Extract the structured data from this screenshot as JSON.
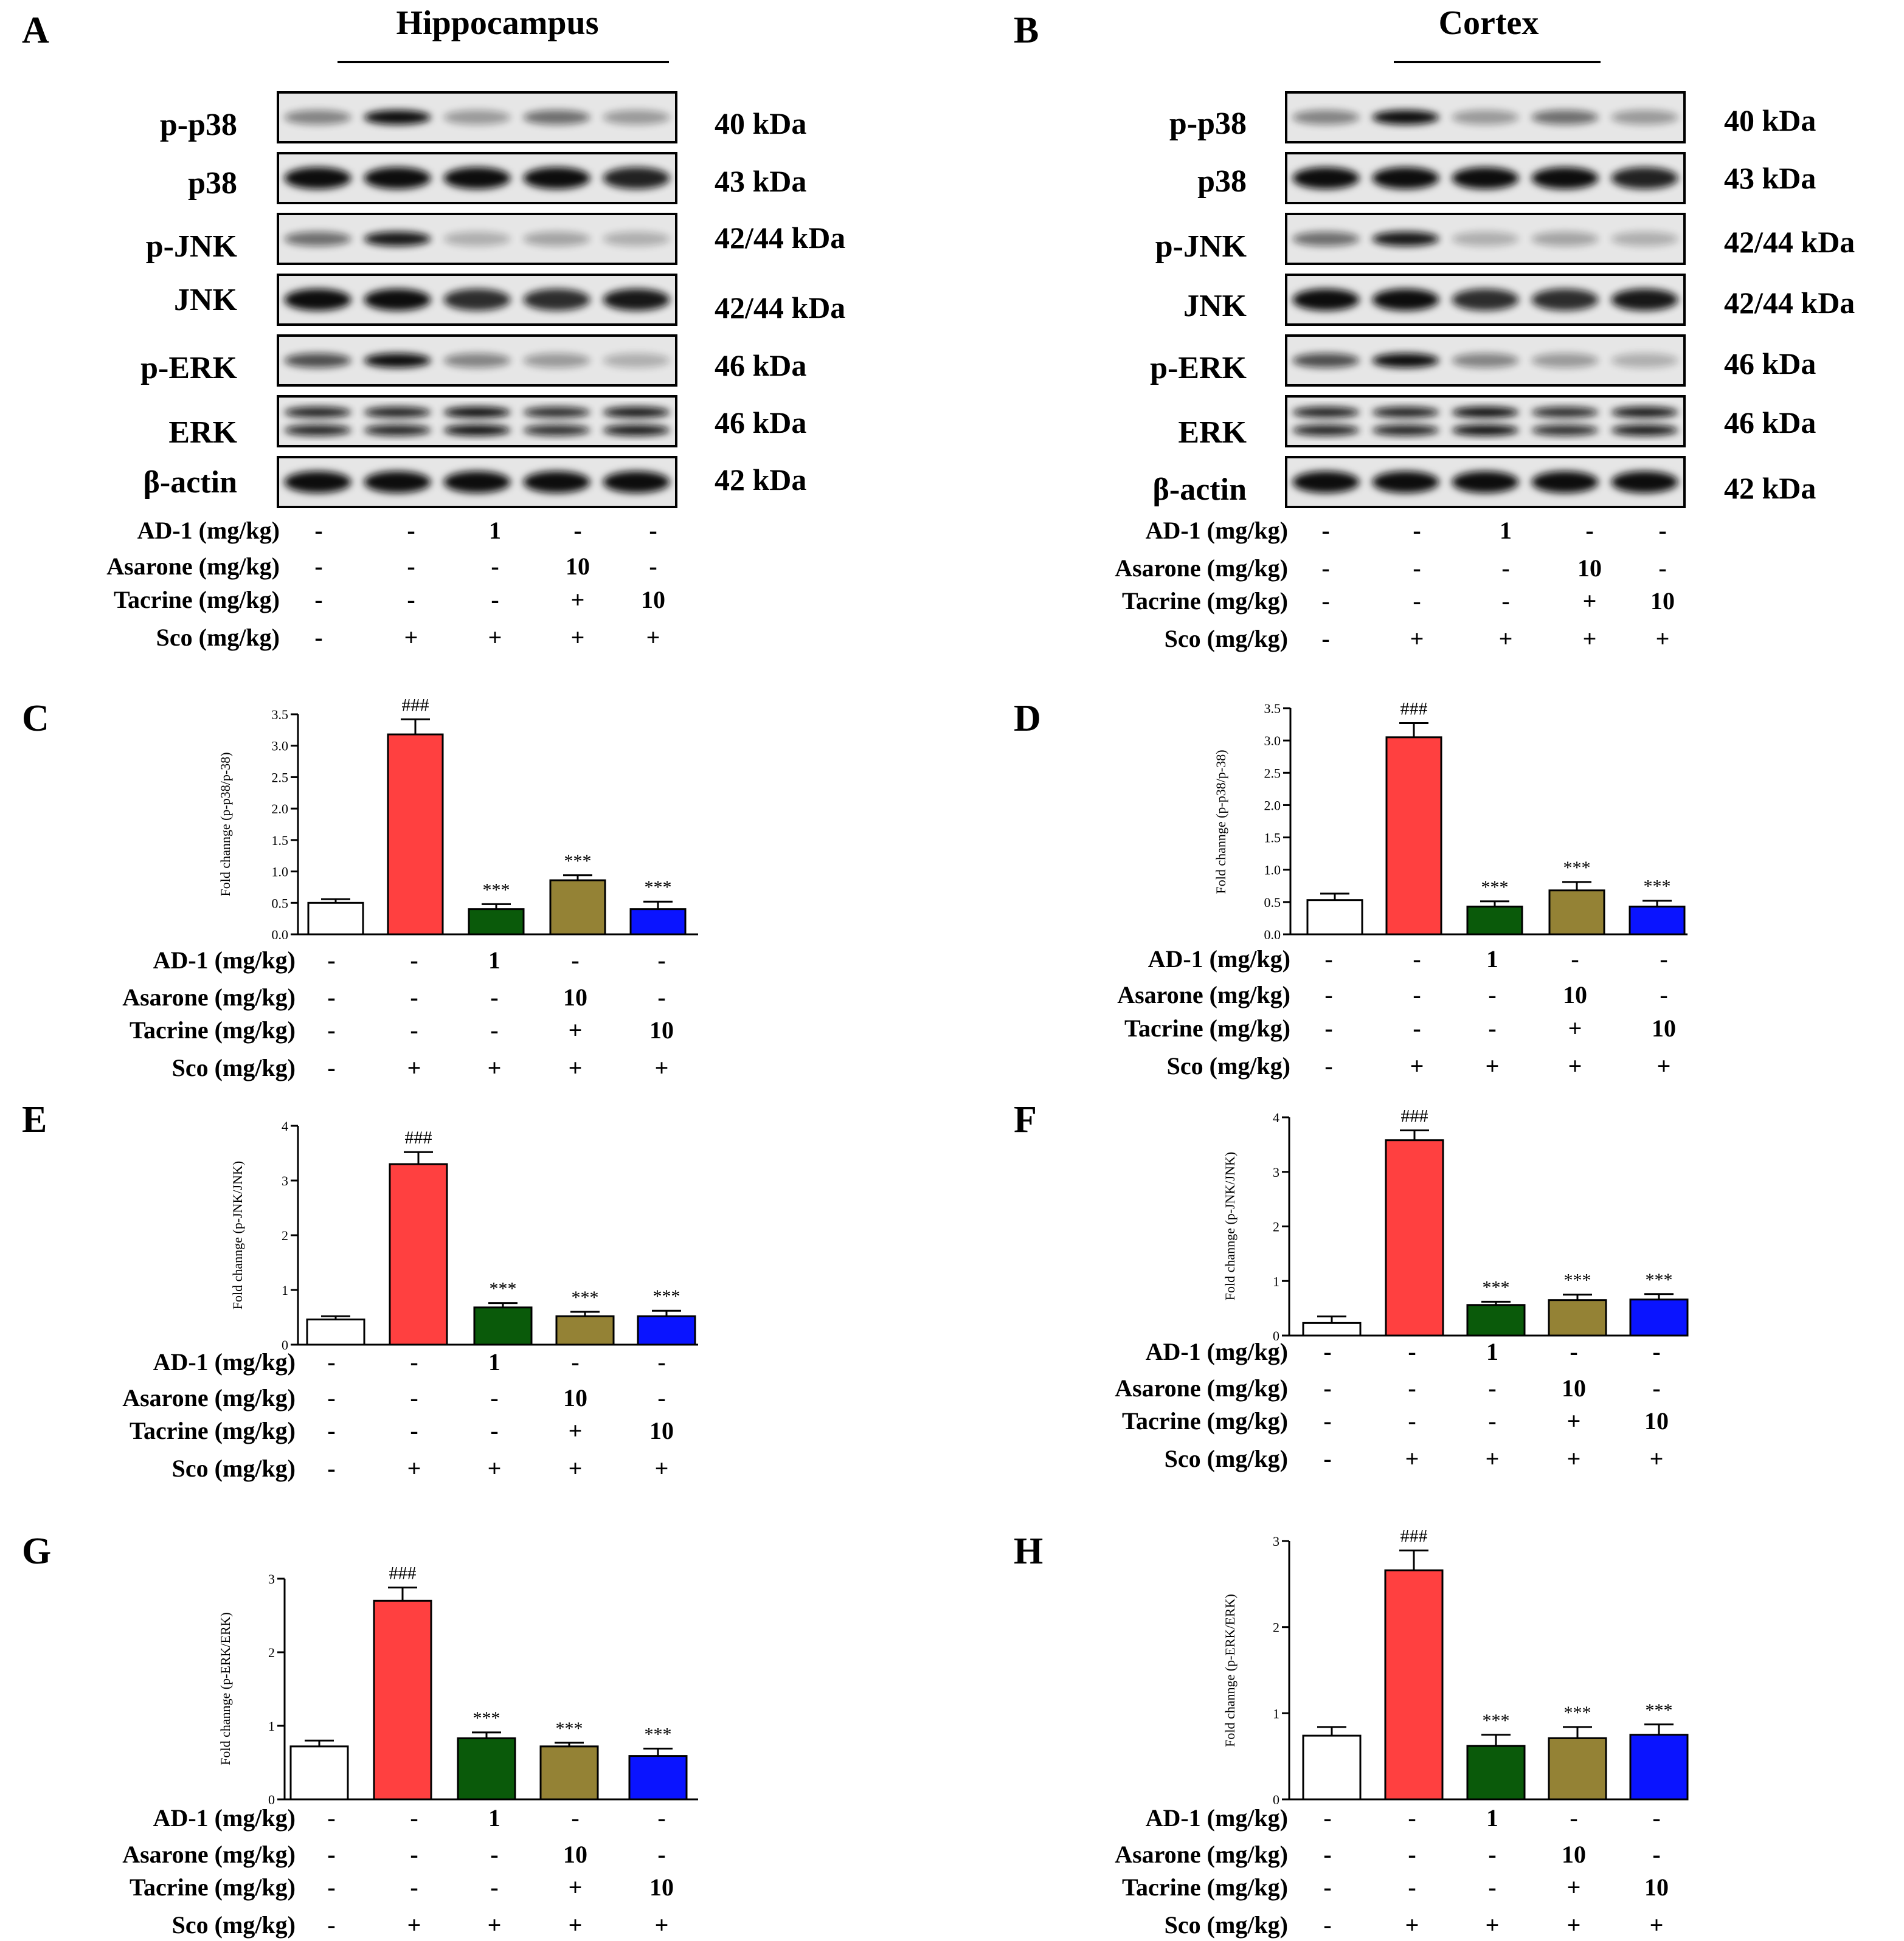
{
  "colors": {
    "control": "#ffffff",
    "sco": "#ff4040",
    "ad1": "#0a5a0a",
    "asarone": "#948235",
    "tacrine": "#0a14ff"
  },
  "figure": {
    "blot_panels": [
      {
        "letter": "A",
        "title": "Hippocampus",
        "bands": [
          {
            "label": "p-p38",
            "kda": "40 kDa"
          },
          {
            "label": "p38",
            "kda": "43 kDa"
          },
          {
            "label": "p-JNK",
            "kda": "42/44 kDa"
          },
          {
            "label": "JNK",
            "kda": "42/44 kDa"
          },
          {
            "label": "p-ERK",
            "kda": "46 kDa"
          },
          {
            "label": "ERK",
            "kda": "46 kDa"
          },
          {
            "label": "β-actin",
            "kda": "42 kDa"
          }
        ]
      },
      {
        "letter": "B",
        "title": "Cortex",
        "bands": [
          {
            "label": "p-p38",
            "kda": "40 kDa"
          },
          {
            "label": "p38",
            "kda": "43 kDa"
          },
          {
            "label": "p-JNK",
            "kda": "42/44 kDa"
          },
          {
            "label": "JNK",
            "kda": "42/44 kDa"
          },
          {
            "label": "p-ERK",
            "kda": "46 kDa"
          },
          {
            "label": "ERK",
            "kda": "46 kDa"
          },
          {
            "label": "β-actin",
            "kda": "42 kDa"
          }
        ]
      }
    ],
    "conditions": [
      {
        "label": "AD-1 (mg/kg)",
        "values": [
          "-",
          "-",
          "1",
          "-",
          "-"
        ]
      },
      {
        "label": "Asarone (mg/kg)",
        "values": [
          "-",
          "-",
          "-",
          "10",
          "-"
        ]
      },
      {
        "label": "Tacrine (mg/kg)",
        "values": [
          "-",
          "-",
          "-",
          "+",
          "10"
        ]
      },
      {
        "label": "Sco (mg/kg)",
        "values": [
          "-",
          "+",
          "+",
          "+",
          "+"
        ]
      }
    ]
  },
  "chart_data": [
    {
      "panel": "C",
      "type": "bar",
      "ylabel": "Fold channge (p-p38/p-38)",
      "ylim": [
        0,
        3.5
      ],
      "yticks": [
        "0.0",
        "0.5",
        "1.0",
        "1.5",
        "2.0",
        "2.5",
        "3.0",
        "3.5"
      ],
      "values": [
        0.5,
        3.18,
        0.4,
        0.86,
        0.4
      ],
      "errors": [
        0.06,
        0.24,
        0.08,
        0.08,
        0.12
      ],
      "annotations": [
        "",
        "###",
        "***",
        "***",
        "***"
      ]
    },
    {
      "panel": "D",
      "type": "bar",
      "ylabel": "Fold channge (p-p38/p-38)",
      "ylim": [
        0,
        3.5
      ],
      "yticks": [
        "0.0",
        "0.5",
        "1.0",
        "1.5",
        "2.0",
        "2.5",
        "3.0",
        "3.5"
      ],
      "values": [
        0.53,
        3.05,
        0.43,
        0.68,
        0.43
      ],
      "errors": [
        0.1,
        0.22,
        0.08,
        0.13,
        0.09
      ],
      "annotations": [
        "",
        "###",
        "***",
        "***",
        "***"
      ]
    },
    {
      "panel": "E",
      "type": "bar",
      "ylabel": "Fold channge (p-JNK/JNK)",
      "ylim": [
        0,
        4
      ],
      "yticks": [
        "0",
        "1",
        "2",
        "3",
        "4"
      ],
      "values": [
        0.46,
        3.3,
        0.68,
        0.52,
        0.52
      ],
      "errors": [
        0.06,
        0.22,
        0.08,
        0.08,
        0.1
      ],
      "annotations": [
        "",
        "###",
        "***",
        "***",
        "***"
      ]
    },
    {
      "panel": "F",
      "type": "bar",
      "ylabel": "Fold channge (p-JNK/JNK)",
      "ylim": [
        0,
        4
      ],
      "yticks": [
        "0",
        "1",
        "2",
        "3",
        "4"
      ],
      "values": [
        0.23,
        3.58,
        0.56,
        0.65,
        0.66
      ],
      "errors": [
        0.12,
        0.18,
        0.06,
        0.1,
        0.1
      ],
      "annotations": [
        "",
        "###",
        "***",
        "***",
        "***"
      ]
    },
    {
      "panel": "G",
      "type": "bar",
      "ylabel": "Fold channge (p-ERK/ERK)",
      "ylim": [
        0,
        3
      ],
      "yticks": [
        "0",
        "1",
        "2",
        "3"
      ],
      "values": [
        0.72,
        2.7,
        0.83,
        0.72,
        0.59
      ],
      "errors": [
        0.08,
        0.18,
        0.08,
        0.05,
        0.1
      ],
      "annotations": [
        "",
        "###",
        "***",
        "***",
        "***"
      ]
    },
    {
      "panel": "H",
      "type": "bar",
      "ylabel": "Fold channge (p-ERK/ERK)",
      "ylim": [
        0,
        3
      ],
      "yticks": [
        "0",
        "1",
        "2",
        "3"
      ],
      "values": [
        0.74,
        2.66,
        0.62,
        0.71,
        0.75
      ],
      "errors": [
        0.1,
        0.23,
        0.13,
        0.13,
        0.12
      ],
      "annotations": [
        "",
        "###",
        "***",
        "***",
        "***"
      ]
    }
  ]
}
